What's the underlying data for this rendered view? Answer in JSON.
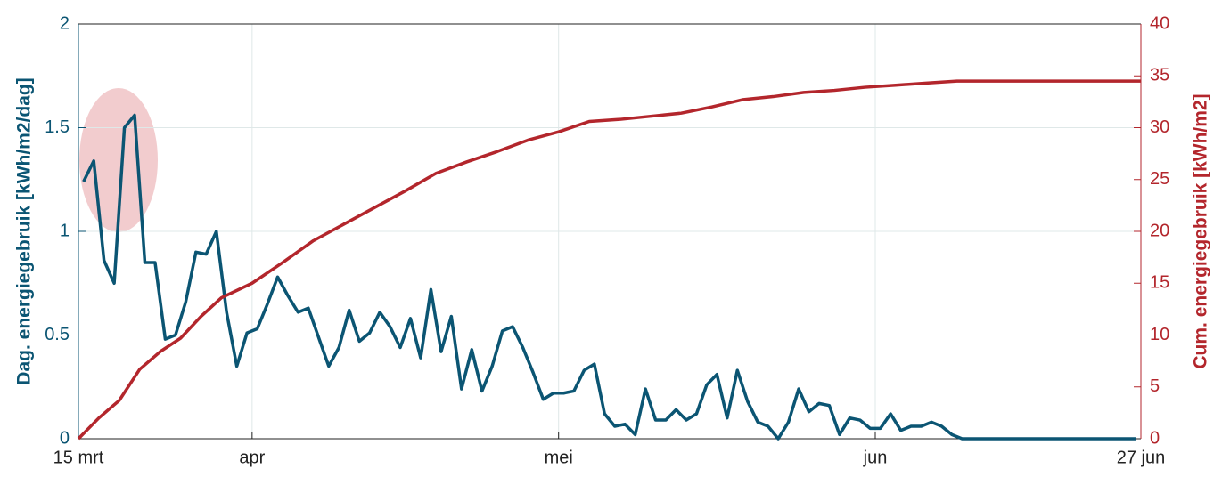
{
  "chart_data": {
    "type": "line",
    "ylabel": "Dag. energiegebruik [kWh/m2/dag]",
    "y2label": "Cum. energiegebruik [kWh/m2]",
    "xlim": [
      0,
      104
    ],
    "xticks": [
      {
        "value": 0,
        "label": "15 mrt"
      },
      {
        "value": 17,
        "label": "apr"
      },
      {
        "value": 47,
        "label": "mei"
      },
      {
        "value": 78,
        "label": "jun"
      },
      {
        "value": 104,
        "label": "27 jun"
      }
    ],
    "ylim": [
      0,
      2
    ],
    "yticks": [
      0,
      0.5,
      1,
      1.5,
      2
    ],
    "y2lim": [
      0,
      40
    ],
    "y2ticks": [
      0,
      5,
      10,
      15,
      20,
      25,
      30,
      35,
      40
    ],
    "grid": true,
    "series": [
      {
        "color": "#0b5573",
        "x": [
          0.5,
          1.5,
          2.5,
          3.5,
          4.5,
          5.5,
          6.5,
          7.5,
          8.5,
          9.5,
          10.5,
          11.5,
          12.5,
          13.5,
          14.5,
          15.5,
          16.5,
          17.5,
          18.5,
          19.5,
          20.5,
          21.5,
          22.5,
          23.5,
          24.5,
          25.5,
          26.5,
          27.5,
          28.5,
          29.5,
          30.5,
          31.5,
          32.5,
          33.5,
          34.5,
          35.5,
          36.5,
          37.5,
          38.5,
          39.5,
          40.5,
          41.5,
          42.5,
          43.5,
          44.5,
          45.5,
          46.5,
          47.5,
          48.5,
          49.5,
          50.5,
          51.5,
          52.5,
          53.5,
          54.5,
          55.5,
          56.5,
          57.5,
          58.5,
          59.5,
          60.5,
          61.5,
          62.5,
          63.5,
          64.5,
          65.5,
          66.5,
          67.5,
          68.5,
          69.5,
          70.5,
          71.5,
          72.5,
          73.5,
          74.5,
          75.5,
          76.5,
          77.5,
          78.5,
          79.5,
          80.5,
          81.5,
          82.5,
          83.5,
          84.5,
          85.5,
          86.5,
          87.5,
          88.5,
          89.5,
          90.5,
          91.5,
          92.5,
          93.5,
          94.5,
          95.5,
          96.5,
          97.5,
          98.5,
          99.5,
          100.5,
          101.5,
          102.5,
          103.5
        ],
        "values": [
          1.24,
          1.34,
          0.86,
          0.75,
          1.5,
          1.56,
          0.85,
          0.85,
          0.48,
          0.5,
          0.66,
          0.9,
          0.89,
          1.0,
          0.61,
          0.35,
          0.51,
          0.53,
          0.65,
          0.78,
          0.69,
          0.61,
          0.63,
          0.49,
          0.35,
          0.44,
          0.62,
          0.47,
          0.51,
          0.61,
          0.54,
          0.44,
          0.58,
          0.39,
          0.72,
          0.42,
          0.59,
          0.24,
          0.43,
          0.23,
          0.35,
          0.52,
          0.54,
          0.44,
          0.32,
          0.19,
          0.22,
          0.22,
          0.23,
          0.33,
          0.36,
          0.12,
          0.06,
          0.07,
          0.02,
          0.24,
          0.09,
          0.09,
          0.14,
          0.09,
          0.12,
          0.26,
          0.31,
          0.1,
          0.33,
          0.18,
          0.08,
          0.06,
          0,
          0.08,
          0.24,
          0.13,
          0.17,
          0.16,
          0.02,
          0.1,
          0.09,
          0.05,
          0.05,
          0.12,
          0.04,
          0.06,
          0.06,
          0.08,
          0.06,
          0.02,
          0,
          0,
          0,
          0,
          0,
          0,
          0,
          0,
          0,
          0,
          0,
          0,
          0,
          0,
          0,
          0,
          0,
          0
        ]
      },
      {
        "color": "#b3262c",
        "axis": "y2",
        "x": [
          0,
          2,
          4,
          6,
          8,
          10,
          12,
          14,
          17,
          20,
          23,
          26,
          29,
          32,
          35,
          38,
          41,
          44,
          47,
          50,
          53,
          56,
          59,
          62,
          65,
          68,
          71,
          74,
          77,
          80,
          83,
          86,
          104
        ],
        "values": [
          0,
          2.0,
          3.7,
          6.7,
          8.4,
          9.7,
          11.8,
          13.6,
          15.0,
          17.0,
          19.1,
          20.7,
          22.3,
          23.9,
          25.6,
          26.7,
          27.7,
          28.8,
          29.6,
          30.6,
          30.8,
          31.1,
          31.4,
          32.0,
          32.7,
          33.0,
          33.4,
          33.6,
          33.9,
          34.1,
          34.3,
          34.5,
          34.5
        ]
      }
    ]
  }
}
